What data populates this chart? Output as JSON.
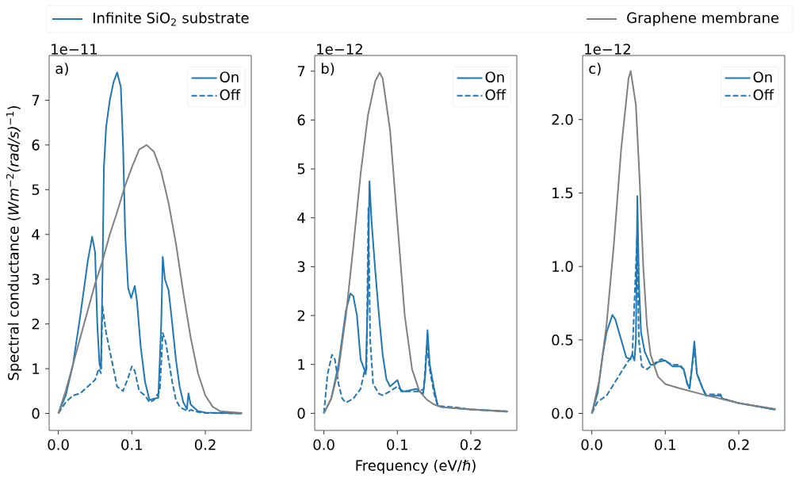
{
  "chart_data": [
    {
      "type": "line",
      "ylabel": "Spectral conductance (*Wm*$^{−2}$*(rad/s)*$^{−1}$)",
      "annotations": [
        "1e−11",
        "a)",
        "Infinite SiO$_{2}$ substrate"
      ],
      "legend": "top right",
      "xlim": [
        -0.0125,
        0.2625
      ],
      "ylim": [
        -0.38,
        8.0
      ],
      "xticks": [
        {
          "value": 0,
          "label": "0.0"
        },
        {
          "value": 0.1,
          "label": "0.1"
        },
        {
          "value": 0.2,
          "label": "0.2"
        }
      ],
      "yticks": [
        0,
        1,
        2,
        3,
        4,
        5,
        6,
        7
      ],
      "series": [
        {
          "name": "On",
          "color": "#1f77b4",
          "line_style": "solid",
          "x": [
            0,
            0.01,
            0.02,
            0.03,
            0.04,
            0.046,
            0.05,
            0.053,
            0.056,
            0.058,
            0.06,
            0.062,
            0.065,
            0.07,
            0.075,
            0.08,
            0.085,
            0.088,
            0.091,
            0.095,
            0.099,
            0.104,
            0.107,
            0.112,
            0.118,
            0.124,
            0.13,
            0.136,
            0.14,
            0.142,
            0.145,
            0.15,
            0.155,
            0.16,
            0.165,
            0.17,
            0.175,
            0.177,
            0.18,
            0.19,
            0.2,
            0.25
          ],
          "values": [
            0,
            0.4,
            1.1,
            2.2,
            3.4,
            3.95,
            3.6,
            2.0,
            1.1,
            1.0,
            3.0,
            5.5,
            6.4,
            7.0,
            7.4,
            7.62,
            7.3,
            6.0,
            4.0,
            2.8,
            2.58,
            2.85,
            2.5,
            1.5,
            0.7,
            0.3,
            0.33,
            0.35,
            2.0,
            3.5,
            3.0,
            2.75,
            2.0,
            1.2,
            0.6,
            0.25,
            0.1,
            0.45,
            0.2,
            0.05,
            0.02,
            0.0
          ]
        },
        {
          "name": "Off",
          "color": "#1f77b4",
          "line_style": "dashed",
          "x": [
            0,
            0.01,
            0.02,
            0.03,
            0.04,
            0.05,
            0.055,
            0.058,
            0.06,
            0.065,
            0.07,
            0.075,
            0.08,
            0.088,
            0.095,
            0.1,
            0.104,
            0.11,
            0.118,
            0.124,
            0.13,
            0.138,
            0.142,
            0.146,
            0.15,
            0.155,
            0.16,
            0.165,
            0.17,
            0.177,
            0.18,
            0.19,
            0.2,
            0.25
          ],
          "values": [
            0,
            0.25,
            0.4,
            0.45,
            0.6,
            0.75,
            1.0,
            0.9,
            2.4,
            1.8,
            1.4,
            1.0,
            0.6,
            0.5,
            0.8,
            1.05,
            0.95,
            0.5,
            0.4,
            0.25,
            0.3,
            0.5,
            1.8,
            1.6,
            1.2,
            0.7,
            0.3,
            0.15,
            0.1,
            0.05,
            0.08,
            0.03,
            0.01,
            0.0
          ]
        },
        {
          "name": "Graphene membrane",
          "color": "#808080",
          "x": [
            0,
            0.01,
            0.02,
            0.03,
            0.04,
            0.05,
            0.06,
            0.07,
            0.08,
            0.09,
            0.1,
            0.11,
            0.12,
            0.13,
            0.14,
            0.15,
            0.16,
            0.17,
            0.18,
            0.19,
            0.2,
            0.21,
            0.22,
            0.25
          ],
          "values": [
            0,
            0.5,
            1.1,
            1.7,
            2.3,
            2.9,
            3.4,
            4.0,
            4.5,
            5.05,
            5.5,
            5.9,
            6.0,
            5.85,
            5.4,
            4.7,
            3.8,
            2.7,
            1.7,
            0.9,
            0.4,
            0.15,
            0.05,
            0.01
          ]
        }
      ]
    },
    {
      "type": "line",
      "xlabel": "Frequency (eV/ℏ)",
      "annotations": [
        "1e−12",
        "b)"
      ],
      "legend": "top right",
      "xlim": [
        -0.0125,
        0.2625
      ],
      "ylim": [
        -0.35,
        7.32
      ],
      "xticks": [
        {
          "value": 0,
          "label": "0.0"
        },
        {
          "value": 0.1,
          "label": "0.1"
        },
        {
          "value": 0.2,
          "label": "0.2"
        }
      ],
      "yticks": [
        0,
        1,
        2,
        3,
        4,
        5,
        6,
        7
      ],
      "series": [
        {
          "name": "On",
          "color": "#1f77b4",
          "line_style": "solid",
          "x": [
            0,
            0.01,
            0.02,
            0.03,
            0.036,
            0.04,
            0.045,
            0.05,
            0.055,
            0.057,
            0.06,
            0.062,
            0.065,
            0.07,
            0.075,
            0.08,
            0.085,
            0.09,
            0.1,
            0.105,
            0.11,
            0.12,
            0.126,
            0.13,
            0.135,
            0.138,
            0.141,
            0.144,
            0.15,
            0.155,
            0.16,
            0.2,
            0.25
          ],
          "values": [
            0,
            0.3,
            1.0,
            2.1,
            2.45,
            2.4,
            2.0,
            1.1,
            0.9,
            0.8,
            2.5,
            4.75,
            3.9,
            2.9,
            2.0,
            1.2,
            0.7,
            0.55,
            0.68,
            0.45,
            0.45,
            0.48,
            0.5,
            0.45,
            0.4,
            0.8,
            1.7,
            1.0,
            0.5,
            0.15,
            0.13,
            0.08,
            0.04
          ]
        },
        {
          "name": "Off",
          "color": "#1f77b4",
          "line_style": "dashed",
          "x": [
            0,
            0.005,
            0.011,
            0.015,
            0.02,
            0.025,
            0.03,
            0.04,
            0.05,
            0.055,
            0.058,
            0.0605,
            0.063,
            0.067,
            0.075,
            0.08,
            0.09,
            0.1,
            0.105,
            0.11,
            0.13,
            0.136,
            0.14,
            0.144,
            0.15,
            0.155,
            0.175,
            0.2,
            0.25
          ],
          "values": [
            0,
            0.8,
            1.2,
            1.1,
            0.6,
            0.3,
            0.22,
            0.3,
            0.5,
            0.85,
            0.9,
            4.2,
            1.5,
            0.6,
            0.4,
            0.37,
            0.45,
            0.55,
            0.48,
            0.45,
            0.45,
            0.5,
            1.4,
            0.9,
            0.4,
            0.15,
            0.13,
            0.08,
            0.04
          ]
        },
        {
          "color": "#808080",
          "x": [
            0,
            0.01,
            0.02,
            0.03,
            0.04,
            0.05,
            0.06,
            0.07,
            0.076,
            0.08,
            0.09,
            0.1,
            0.11,
            0.12,
            0.13,
            0.14,
            0.15,
            0.16,
            0.2,
            0.25
          ],
          "values": [
            0,
            0.3,
            0.9,
            2.0,
            3.4,
            4.9,
            6.1,
            6.8,
            6.97,
            6.85,
            5.8,
            3.9,
            2.0,
            0.9,
            0.45,
            0.28,
            0.18,
            0.13,
            0.08,
            0.03
          ]
        }
      ]
    },
    {
      "type": "line",
      "annotations": [
        "1e−12",
        "c)"
      ],
      "legend": "top right",
      "xlim": [
        -0.0125,
        0.2625
      ],
      "ylim": [
        -0.116,
        2.436
      ],
      "xticks": [
        {
          "value": 0,
          "label": "0.0"
        },
        {
          "value": 0.1,
          "label": "0.1"
        },
        {
          "value": 0.2,
          "label": "0.2"
        }
      ],
      "yticks": [
        {
          "value": 0,
          "label": "0.0"
        },
        {
          "value": 0.5,
          "label": "0.5"
        },
        {
          "value": 1,
          "label": "1.0"
        },
        {
          "value": 1.5,
          "label": "1.5"
        },
        {
          "value": 2,
          "label": "2.0"
        }
      ],
      "series": [
        {
          "name": "On",
          "color": "#1f77b4",
          "line_style": "solid",
          "x": [
            0,
            0.008,
            0.015,
            0.02,
            0.028,
            0.032,
            0.04,
            0.047,
            0.052,
            0.055,
            0.058,
            0.06,
            0.062,
            0.064,
            0.067,
            0.072,
            0.08,
            0.085,
            0.09,
            0.1,
            0.11,
            0.12,
            0.125,
            0.13,
            0.133,
            0.136,
            0.1395,
            0.143,
            0.15,
            0.155,
            0.16,
            0.175,
            0.178,
            0.2,
            0.25
          ],
          "values": [
            0,
            0.14,
            0.4,
            0.55,
            0.67,
            0.64,
            0.5,
            0.38,
            0.37,
            0.4,
            0.36,
            0.5,
            1.48,
            0.9,
            0.55,
            0.42,
            0.33,
            0.33,
            0.35,
            0.36,
            0.32,
            0.32,
            0.3,
            0.2,
            0.17,
            0.3,
            0.49,
            0.27,
            0.18,
            0.12,
            0.12,
            0.12,
            0.1,
            0.07,
            0.025
          ]
        },
        {
          "name": "Off",
          "color": "#1f77b4",
          "line_style": "dashed",
          "x": [
            0,
            0.008,
            0.02,
            0.03,
            0.04,
            0.05,
            0.055,
            0.0615,
            0.064,
            0.068,
            0.075,
            0.085,
            0.095,
            0.11,
            0.12,
            0.125,
            0.13,
            0.133,
            0.136,
            0.1395,
            0.143,
            0.15,
            0.155,
            0.175,
            0.178,
            0.2,
            0.25
          ],
          "values": [
            0,
            0.08,
            0.12,
            0.2,
            0.28,
            0.36,
            0.38,
            1.2,
            0.5,
            0.32,
            0.3,
            0.34,
            0.37,
            0.33,
            0.33,
            0.3,
            0.2,
            0.17,
            0.3,
            0.45,
            0.27,
            0.18,
            0.13,
            0.13,
            0.1,
            0.07,
            0.025
          ]
        },
        {
          "color": "#808080",
          "x": [
            0,
            0.01,
            0.02,
            0.03,
            0.04,
            0.05,
            0.053,
            0.06,
            0.065,
            0.07,
            0.075,
            0.08,
            0.09,
            0.1,
            0.12,
            0.15,
            0.2,
            0.25
          ],
          "values": [
            0,
            0.22,
            0.6,
            1.15,
            1.8,
            2.28,
            2.33,
            2.1,
            1.6,
            1.0,
            0.6,
            0.4,
            0.25,
            0.2,
            0.17,
            0.13,
            0.07,
            0.03
          ]
        }
      ]
    }
  ]
}
